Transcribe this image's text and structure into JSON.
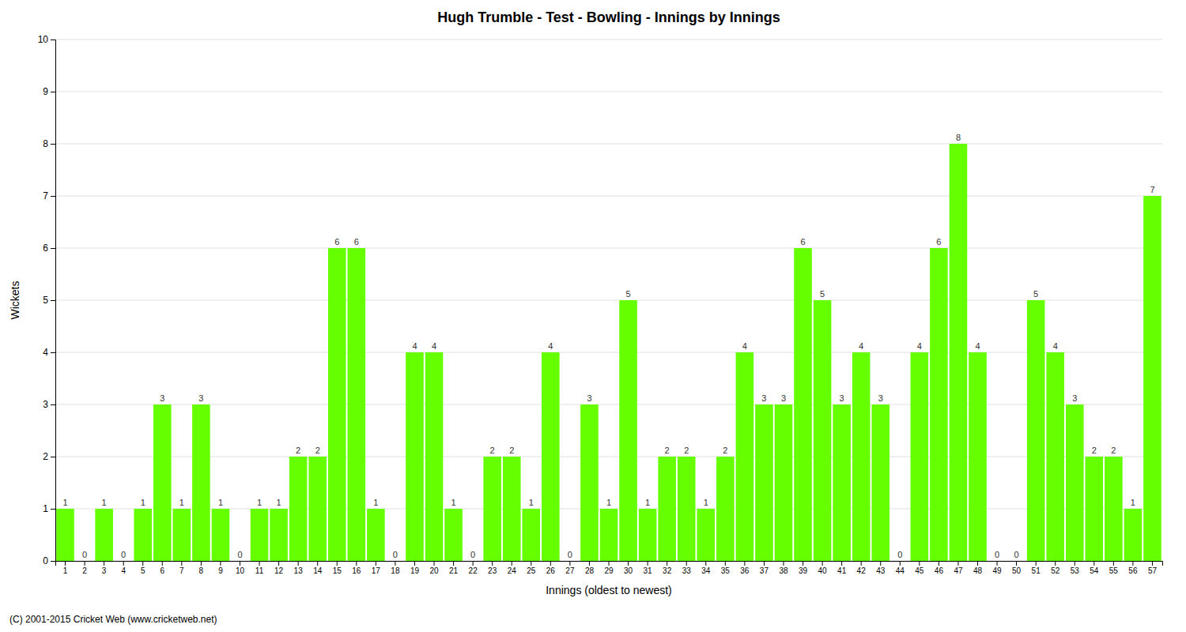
{
  "chart_data": {
    "type": "bar",
    "title": "Hugh Trumble - Test - Bowling - Innings by Innings",
    "xlabel": "Innings (oldest to newest)",
    "ylabel": "Wickets",
    "annotations": [
      "(C) 2001-2015 Cricket Web (www.cricketweb.net)"
    ],
    "categories": [
      "1",
      "2",
      "3",
      "4",
      "5",
      "6",
      "7",
      "8",
      "9",
      "10",
      "11",
      "12",
      "13",
      "14",
      "15",
      "16",
      "17",
      "18",
      "19",
      "20",
      "21",
      "22",
      "23",
      "24",
      "25",
      "26",
      "27",
      "28",
      "29",
      "30",
      "31",
      "32",
      "33",
      "34",
      "35",
      "36",
      "37",
      "38",
      "39",
      "40",
      "41",
      "42",
      "43",
      "44",
      "45",
      "46",
      "47",
      "48",
      "49",
      "50",
      "51",
      "52",
      "53",
      "54",
      "55",
      "56",
      "57"
    ],
    "values": [
      1,
      0,
      1,
      0,
      1,
      3,
      1,
      3,
      1,
      0,
      1,
      1,
      2,
      2,
      6,
      6,
      1,
      0,
      4,
      4,
      1,
      0,
      2,
      2,
      1,
      4,
      0,
      3,
      1,
      5,
      1,
      2,
      2,
      1,
      2,
      4,
      3,
      3,
      6,
      5,
      3,
      4,
      3,
      0,
      4,
      6,
      8,
      4,
      0,
      0,
      5,
      4,
      3,
      2,
      2,
      1,
      7
    ],
    "color": "#66FF00",
    "ylim": [
      0,
      10
    ],
    "yticks": [
      0,
      1,
      2,
      3,
      4,
      5,
      6,
      7,
      8,
      9,
      10
    ],
    "grid": true,
    "data_labels": true
  }
}
